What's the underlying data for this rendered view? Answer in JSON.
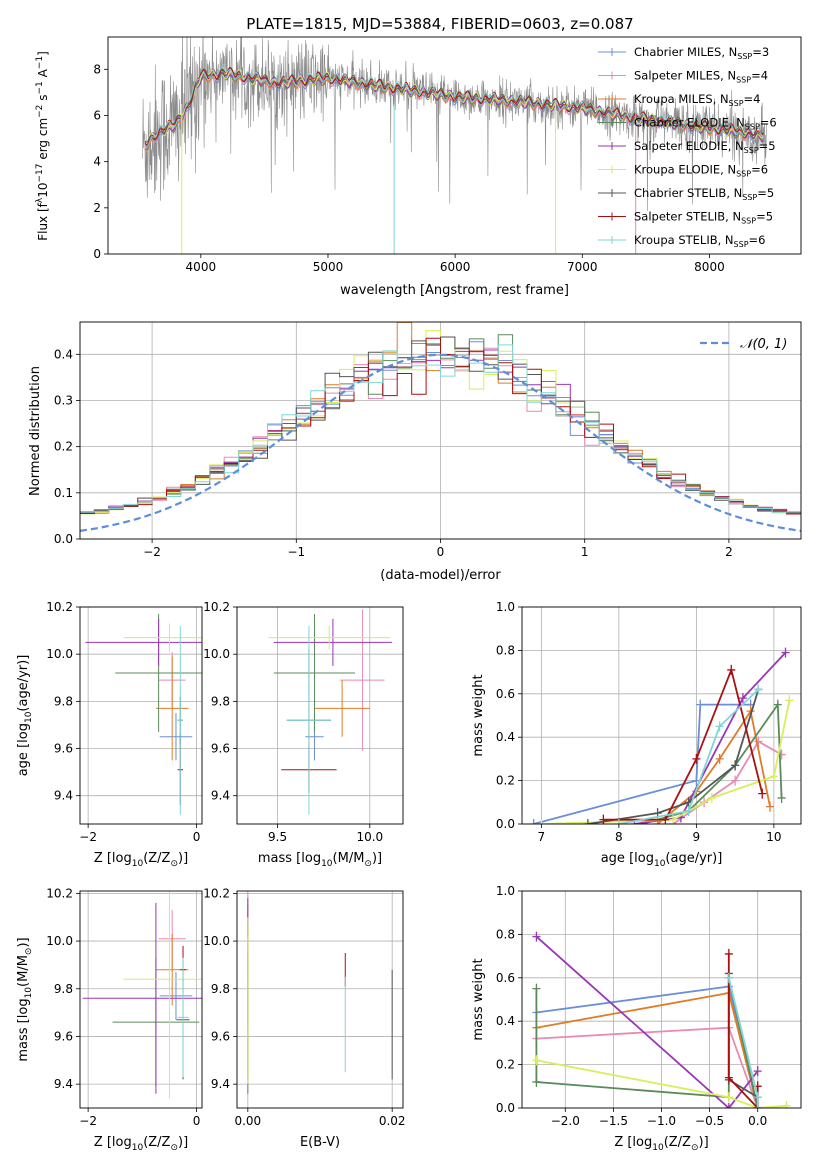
{
  "title": "PLATE=1815, MJD=53884, FIBERID=0603, z=0.087",
  "colors": {
    "chabrier_miles": "#6a8fd8",
    "salpeter_miles": "#e88ab4",
    "kroupa_miles": "#e07b27",
    "chabrier_elodie": "#5b8a5b",
    "salpeter_elodie": "#9a35b5",
    "kroupa_elodie": "#d8ee5a",
    "chabrier_stelib": "#555555",
    "salpeter_stelib": "#a81010",
    "kroupa_stelib": "#7fd6d6",
    "data": "#8a8a8a",
    "normal": "#5b8fd8",
    "grid": "#b0b0b0"
  },
  "chart_data": [
    {
      "type": "line",
      "id": "spectrum",
      "xlabel": "wavelength [Angstrom, rest frame]",
      "ylabel_parts": [
        "Flux [f",
        "λ",
        "10",
        "−17",
        " erg cm",
        "−2",
        " s",
        "−1",
        " A",
        "−1",
        "]"
      ],
      "xlim": [
        3270,
        8720
      ],
      "ylim": [
        0,
        9.4
      ],
      "xticks": [
        "4000",
        "5000",
        "6000",
        "7000",
        "8000"
      ],
      "yticks": [
        "0",
        "2",
        "4",
        "6",
        "8"
      ],
      "continuum": [
        [
          3540,
          4.6
        ],
        [
          3650,
          5.2
        ],
        [
          3800,
          5.6
        ],
        [
          3900,
          6.4
        ],
        [
          4000,
          7.7
        ],
        [
          4200,
          7.8
        ],
        [
          4600,
          7.4
        ],
        [
          5000,
          7.6
        ],
        [
          5500,
          7.2
        ],
        [
          6000,
          6.8
        ],
        [
          6500,
          6.6
        ],
        [
          7000,
          6.3
        ],
        [
          7400,
          5.9
        ],
        [
          7800,
          5.6
        ],
        [
          8200,
          5.3
        ],
        [
          8450,
          5.1
        ]
      ],
      "legend": [
        {
          "name": "Chabrier MILES",
          "n": "3"
        },
        {
          "name": "Salpeter MILES",
          "n": "4"
        },
        {
          "name": "Kroupa MILES",
          "n": "4"
        },
        {
          "name": "Chabrier ELODIE",
          "n": "6"
        },
        {
          "name": "Salpeter ELODIE",
          "n": "5"
        },
        {
          "name": "Kroupa ELODIE",
          "n": "6"
        },
        {
          "name": "Chabrier STELIB",
          "n": "5"
        },
        {
          "name": "Salpeter STELIB",
          "n": "5"
        },
        {
          "name": "Kroupa STELIB",
          "n": "6"
        }
      ],
      "legend_sub": "SSP"
    },
    {
      "type": "line",
      "id": "residuals",
      "xlabel": "(data-model)/error",
      "ylabel": "Normed distribution",
      "xlim": [
        -2.5,
        2.5
      ],
      "ylim": [
        0,
        0.47
      ],
      "xticks": [
        "−2",
        "−1",
        "0",
        "1",
        "2"
      ],
      "yticks": [
        "0.0",
        "0.1",
        "0.2",
        "0.3",
        "0.4"
      ],
      "legend": "𝒩(0, 1)",
      "bin_width": 0.1,
      "normal": {
        "mean": 0,
        "sigma": 1
      }
    },
    {
      "type": "scatter",
      "id": "age-vs-Z",
      "xlabel_parts": [
        "Z [log",
        "10",
        "(Z/Z",
        "⊙",
        ")]"
      ],
      "ylabel_parts": [
        "age  [log",
        "10",
        "(age/yr)]"
      ],
      "xlim": [
        -2.15,
        0.1
      ],
      "ylim": [
        9.28,
        10.2
      ],
      "xticks": [
        "−2",
        "0"
      ],
      "yticks": [
        "9.4",
        "9.6",
        "9.8",
        "10.0",
        "10.2"
      ],
      "points": [
        {
          "x": -0.38,
          "y": 9.65,
          "xerr": 0.3,
          "yerr": 0.1
        },
        {
          "x": -0.45,
          "y": 9.89,
          "xerr": 0.25,
          "yerr": 0.12
        },
        {
          "x": -0.45,
          "y": 9.77,
          "xerr": 0.3,
          "yerr": 0.22
        },
        {
          "x": -0.7,
          "y": 9.92,
          "xerr": 0.8,
          "yerr": 0.25
        },
        {
          "x": -0.7,
          "y": 10.05,
          "xerr": 1.35,
          "yerr": 0.1
        },
        {
          "x": -0.5,
          "y": 10.07,
          "xerr": 0.85,
          "yerr": 0.06
        },
        {
          "x": -0.3,
          "y": 9.72,
          "xerr": 0.05,
          "yerr": 0.1
        },
        {
          "x": -0.3,
          "y": 9.51,
          "xerr": 0.05,
          "yerr": 0.15
        },
        {
          "x": -0.3,
          "y": 9.72,
          "xerr": 0.05,
          "yerr": 0.4
        }
      ]
    },
    {
      "type": "scatter",
      "id": "age-vs-mass",
      "xlabel_parts": [
        "mass [log",
        "10",
        "(M/M",
        "⊙",
        ")]"
      ],
      "xlim": [
        9.28,
        10.18
      ],
      "ylim": [
        9.28,
        10.2
      ],
      "xticks": [
        "9.5",
        "10.0"
      ],
      "yticks": [
        "9.4",
        "9.6",
        "9.8",
        "10.0",
        "10.2"
      ],
      "points": [
        {
          "x": 9.7,
          "y": 9.65,
          "xerr": 0.05,
          "yerr": 0.1
        },
        {
          "x": 9.96,
          "y": 9.89,
          "xerr": 0.12,
          "yerr": 0.3
        },
        {
          "x": 9.85,
          "y": 9.77,
          "xerr": 0.15,
          "yerr": 0.12
        },
        {
          "x": 9.7,
          "y": 9.92,
          "xerr": 0.22,
          "yerr": 0.25
        },
        {
          "x": 9.8,
          "y": 10.05,
          "xerr": 0.32,
          "yerr": 0.1
        },
        {
          "x": 9.78,
          "y": 10.07,
          "xerr": 0.33,
          "yerr": 0.05
        },
        {
          "x": 9.67,
          "y": 9.72,
          "xerr": 0.12,
          "yerr": 0.3
        },
        {
          "x": 9.67,
          "y": 9.51,
          "xerr": 0.15,
          "yerr": 0.1
        },
        {
          "x": 9.67,
          "y": 9.72,
          "xerr": 0.12,
          "yerr": 0.4
        }
      ]
    },
    {
      "type": "line",
      "id": "weight-vs-age",
      "xlabel_parts": [
        "age  [log",
        "10",
        "(age/yr)]"
      ],
      "ylabel": "mass weight",
      "xlim": [
        6.75,
        10.35
      ],
      "ylim": [
        0,
        1.0
      ],
      "xticks": [
        "7",
        "8",
        "9",
        "10"
      ],
      "yticks": [
        "0.0",
        "0.2",
        "0.4",
        "0.6",
        "0.8",
        "1.0"
      ],
      "series": [
        {
          "color_key": "chabrier_miles",
          "points": [
            [
              6.9,
              0.0
            ],
            [
              9.0,
              0.2
            ],
            [
              9.05,
              0.55
            ],
            [
              9.7,
              0.55
            ]
          ]
        },
        {
          "color_key": "salpeter_miles",
          "points": [
            [
              8.7,
              0.0
            ],
            [
              9.1,
              0.1
            ],
            [
              9.5,
              0.2
            ],
            [
              9.8,
              0.38
            ],
            [
              10.1,
              0.32
            ]
          ]
        },
        {
          "color_key": "kroupa_miles",
          "points": [
            [
              8.5,
              0.0
            ],
            [
              9.0,
              0.15
            ],
            [
              9.3,
              0.3
            ],
            [
              9.7,
              0.52
            ],
            [
              9.95,
              0.08
            ]
          ]
        },
        {
          "color_key": "chabrier_elodie",
          "points": [
            [
              8.3,
              0.0
            ],
            [
              8.9,
              0.06
            ],
            [
              9.5,
              0.27
            ],
            [
              10.05,
              0.55
            ],
            [
              10.1,
              0.12
            ]
          ]
        },
        {
          "color_key": "salpeter_elodie",
          "points": [
            [
              8.2,
              0.0
            ],
            [
              8.8,
              0.03
            ],
            [
              9.6,
              0.58
            ],
            [
              10.15,
              0.79
            ]
          ]
        },
        {
          "color_key": "kroupa_elodie",
          "points": [
            [
              7.0,
              0.0
            ],
            [
              8.7,
              0.02
            ],
            [
              9.2,
              0.12
            ],
            [
              10.0,
              0.22
            ],
            [
              10.2,
              0.57
            ]
          ]
        },
        {
          "color_key": "chabrier_stelib",
          "points": [
            [
              7.6,
              0.0
            ],
            [
              8.5,
              0.05
            ],
            [
              8.9,
              0.1
            ],
            [
              9.5,
              0.27
            ],
            [
              9.8,
              0.62
            ]
          ]
        },
        {
          "color_key": "salpeter_stelib",
          "points": [
            [
              7.8,
              0.02
            ],
            [
              8.6,
              0.02
            ],
            [
              9.0,
              0.3
            ],
            [
              9.45,
              0.71
            ],
            [
              9.85,
              0.14
            ]
          ]
        },
        {
          "color_key": "kroupa_stelib",
          "points": [
            [
              8.0,
              0.0
            ],
            [
              8.9,
              0.06
            ],
            [
              9.3,
              0.45
            ],
            [
              9.8,
              0.62
            ]
          ]
        }
      ]
    },
    {
      "type": "scatter",
      "id": "mass-vs-Z",
      "xlabel_parts": [
        "Z [log",
        "10",
        "(Z/Z",
        "⊙",
        ")]"
      ],
      "ylabel_parts": [
        "mass [log",
        "10",
        "(M/M",
        "⊙",
        ")]"
      ],
      "xlim": [
        -2.15,
        0.1
      ],
      "ylim": [
        9.3,
        10.21
      ],
      "xticks": [
        "−2",
        "0"
      ],
      "yticks": [
        "9.4",
        "9.6",
        "9.8",
        "10.0",
        "10.2"
      ],
      "points": [
        {
          "x": -0.38,
          "y": 9.77,
          "xerr": 0.3,
          "yerr": 0.1
        },
        {
          "x": -0.45,
          "y": 10.01,
          "xerr": 0.25,
          "yerr": 0.12
        },
        {
          "x": -0.45,
          "y": 9.88,
          "xerr": 0.3,
          "yerr": 0.15
        },
        {
          "x": -0.75,
          "y": 9.66,
          "xerr": 0.8,
          "yerr": 0.27
        },
        {
          "x": -0.75,
          "y": 9.76,
          "xerr": 1.35,
          "yerr": 0.4
        },
        {
          "x": -0.5,
          "y": 9.84,
          "xerr": 0.85,
          "yerr": 0.5
        },
        {
          "x": -0.25,
          "y": 9.67,
          "xerr": 0.12,
          "yerr": 0.25
        },
        {
          "x": -0.25,
          "y": 9.88,
          "xerr": 0.05,
          "yerr": 0.1
        },
        {
          "x": -0.25,
          "y": 9.68,
          "xerr": 0.1,
          "yerr": 0.25
        }
      ]
    },
    {
      "type": "scatter",
      "id": "mass-vs-ebv",
      "xlabel": "E(B-V)",
      "xlim": [
        -0.0015,
        0.0215
      ],
      "ylim": [
        9.3,
        10.21
      ],
      "xticks": [
        "0.00",
        "0.02"
      ],
      "yticks": [
        "9.4",
        "9.6",
        "9.8",
        "10.0",
        "10.2"
      ],
      "points": [
        {
          "x": 0.0,
          "y": 9.77,
          "xerr": 0,
          "yerr": 0.35
        },
        {
          "x": 0.0,
          "y": 10.03,
          "xerr": 0,
          "yerr": 0.2
        },
        {
          "x": 0.0,
          "y": 9.9,
          "xerr": 0,
          "yerr": 0.25
        },
        {
          "x": 0.0,
          "y": 9.66,
          "xerr": 0,
          "yerr": 0.3
        },
        {
          "x": 0.0,
          "y": 10.1,
          "xerr": 0,
          "yerr": 0.08
        },
        {
          "x": 0.0,
          "y": 9.75,
          "xerr": 0,
          "yerr": 0.35
        },
        {
          "x": 0.02,
          "y": 9.65,
          "xerr": 0,
          "yerr": 0.23
        },
        {
          "x": 0.0135,
          "y": 9.88,
          "xerr": 0,
          "yerr": 0.07
        },
        {
          "x": 0.0135,
          "y": 9.65,
          "xerr": 0,
          "yerr": 0.2
        }
      ]
    },
    {
      "type": "line",
      "id": "weight-vs-Z",
      "xlabel_parts": [
        "Z [log",
        "10",
        "(Z/Z",
        "⊙",
        ")]"
      ],
      "ylabel": "mass weight",
      "xlim": [
        -2.45,
        0.45
      ],
      "ylim": [
        0,
        1.0
      ],
      "xticks": [
        "−2.0",
        "−1.5",
        "−1.0",
        "−0.5",
        "0.0"
      ],
      "yticks": [
        "0.0",
        "0.2",
        "0.4",
        "0.6",
        "0.8",
        "1.0"
      ],
      "series": [
        {
          "color_key": "chabrier_miles",
          "points": [
            [
              -2.3,
              0.44
            ],
            [
              -0.3,
              0.56
            ],
            [
              0.0,
              0.0
            ]
          ]
        },
        {
          "color_key": "salpeter_miles",
          "points": [
            [
              -2.3,
              0.32
            ],
            [
              -0.3,
              0.37
            ],
            [
              0.0,
              0.0
            ]
          ]
        },
        {
          "color_key": "kroupa_miles",
          "points": [
            [
              -2.3,
              0.37
            ],
            [
              -0.3,
              0.53
            ],
            [
              0.0,
              0.0
            ]
          ]
        },
        {
          "color_key": "chabrier_elodie",
          "points": [
            [
              -2.3,
              0.55
            ],
            [
              -2.3,
              0.12
            ],
            [
              -0.3,
              0.05
            ],
            [
              -0.3,
              0.6
            ],
            [
              0.0,
              0.0
            ]
          ]
        },
        {
          "color_key": "salpeter_elodie",
          "points": [
            [
              -2.3,
              0.79
            ],
            [
              -0.3,
              0.0
            ],
            [
              0.0,
              0.17
            ]
          ]
        },
        {
          "color_key": "kroupa_elodie",
          "points": [
            [
              -2.3,
              0.22
            ],
            [
              -0.3,
              0.05
            ],
            [
              0.0,
              0.0
            ],
            [
              0.3,
              0.01
            ]
          ]
        },
        {
          "color_key": "chabrier_stelib",
          "points": [
            [
              -0.3,
              0.62
            ],
            [
              -0.3,
              0.13
            ],
            [
              0.0,
              0.05
            ],
            [
              0.0,
              0.0
            ]
          ]
        },
        {
          "color_key": "salpeter_stelib",
          "points": [
            [
              -0.3,
              0.71
            ],
            [
              -0.3,
              0.14
            ],
            [
              0.0,
              0.0
            ],
            [
              0.0,
              0.1
            ]
          ]
        },
        {
          "color_key": "kroupa_stelib",
          "points": [
            [
              -0.3,
              0.6
            ],
            [
              0.0,
              0.05
            ],
            [
              0.0,
              0.0
            ]
          ]
        }
      ]
    }
  ]
}
